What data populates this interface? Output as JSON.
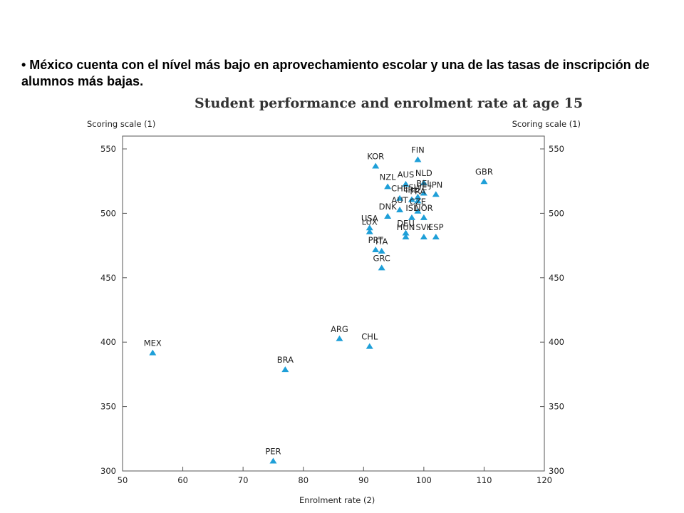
{
  "slide": {
    "bullet_text": "• México cuenta con el nível más bajo en aprovechamiento escolar y una de las tasas de inscripción de alumnos más bajas."
  },
  "chart_data": {
    "type": "scatter",
    "title": "Student performance and enrolment rate at age 15",
    "ylabel_left": "Scoring scale (1)",
    "ylabel_right": "Scoring scale (1)",
    "xlabel": "Enrolment rate (2)",
    "xlim": [
      50,
      120
    ],
    "ylim": [
      300,
      560
    ],
    "xticks": [
      50,
      60,
      70,
      80,
      90,
      100,
      110,
      120
    ],
    "yticks": [
      300,
      350,
      400,
      450,
      500,
      550
    ],
    "grid": false,
    "marker_color": "#1e9fd8",
    "points": [
      {
        "label": "FIN",
        "x": 99,
        "y": 542
      },
      {
        "label": "KOR",
        "x": 92,
        "y": 537
      },
      {
        "label": "NLD",
        "x": 100,
        "y": 524
      },
      {
        "label": "GBR",
        "x": 110,
        "y": 525
      },
      {
        "label": "AUS",
        "x": 97,
        "y": 523
      },
      {
        "label": "NZL",
        "x": 94,
        "y": 521
      },
      {
        "label": "CHE",
        "x": 96,
        "y": 512
      },
      {
        "label": "BEL",
        "x": 100,
        "y": 516
      },
      {
        "label": "JPN",
        "x": 102,
        "y": 515
      },
      {
        "label": "SWE",
        "x": 99,
        "y": 513
      },
      {
        "label": "IRL",
        "x": 98,
        "y": 511
      },
      {
        "label": "FRA",
        "x": 99,
        "y": 510
      },
      {
        "label": "AUT",
        "x": 96,
        "y": 503
      },
      {
        "label": "CZE",
        "x": 99,
        "y": 502
      },
      {
        "label": "NOR",
        "x": 100,
        "y": 497
      },
      {
        "label": "DNK",
        "x": 94,
        "y": 498
      },
      {
        "label": "ISL",
        "x": 98,
        "y": 497
      },
      {
        "label": "USA",
        "x": 91,
        "y": 489
      },
      {
        "label": "DEU",
        "x": 97,
        "y": 485
      },
      {
        "label": "LUX",
        "x": 91,
        "y": 486
      },
      {
        "label": "ESP",
        "x": 102,
        "y": 482
      },
      {
        "label": "HUN",
        "x": 97,
        "y": 482
      },
      {
        "label": "SVK",
        "x": 100,
        "y": 482
      },
      {
        "label": "ITA",
        "x": 93,
        "y": 471
      },
      {
        "label": "PRT",
        "x": 92,
        "y": 472
      },
      {
        "label": "GRC",
        "x": 93,
        "y": 458
      },
      {
        "label": "ARG",
        "x": 86,
        "y": 403
      },
      {
        "label": "CHL",
        "x": 91,
        "y": 397
      },
      {
        "label": "MEX",
        "x": 55,
        "y": 392
      },
      {
        "label": "BRA",
        "x": 77,
        "y": 379
      },
      {
        "label": "PER",
        "x": 75,
        "y": 308
      }
    ]
  }
}
